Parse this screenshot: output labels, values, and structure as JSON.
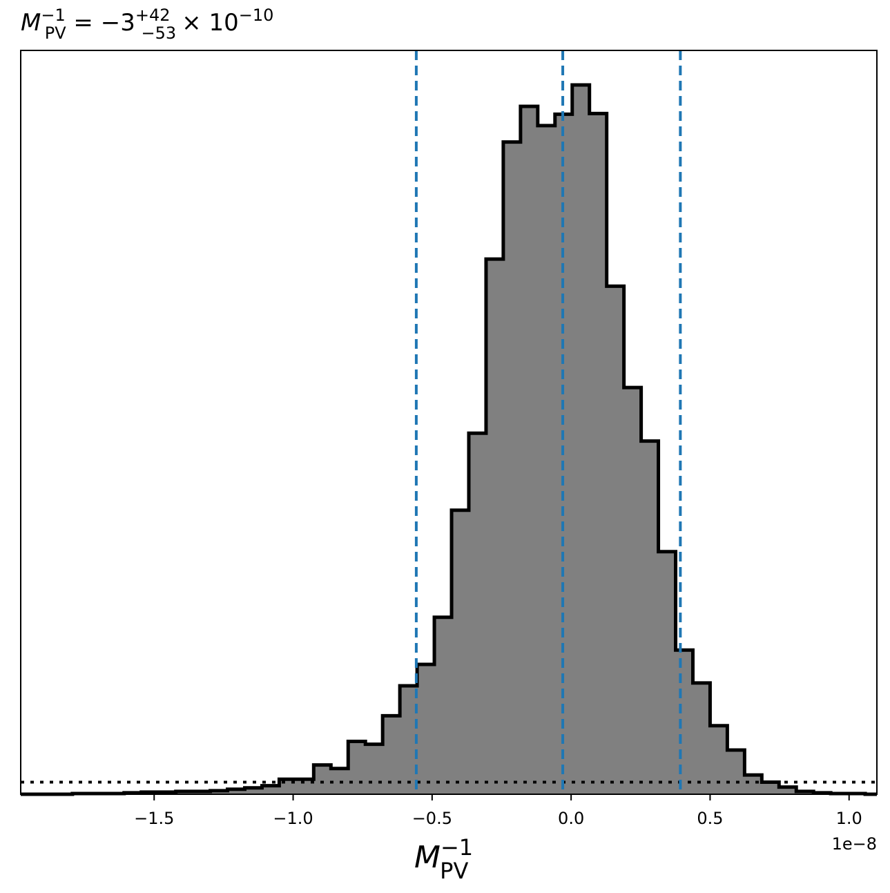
{
  "chart_data": {
    "type": "histogram",
    "title": {
      "base": "M",
      "sup": "−1",
      "sub": "PV",
      "eq": " = −3",
      "err_sup": "+42",
      "err_sub": "−53",
      "times": "× 10",
      "exp": "−10"
    },
    "xlabel": {
      "base": "M",
      "sup": "−1",
      "sub": "PV"
    },
    "x_multiplier_label": "1e−8",
    "xlim": [
      -1.98,
      1.1
    ],
    "ylim": [
      0,
      1.0
    ],
    "grid": false,
    "legend": "none",
    "x_ticks": [
      {
        "value": -1.5,
        "label": "−1.5"
      },
      {
        "value": -1.0,
        "label": "−1.0"
      },
      {
        "value": -0.5,
        "label": "−0.5"
      },
      {
        "value": 0.0,
        "label": "0.0"
      },
      {
        "value": 0.5,
        "label": "0.5"
      },
      {
        "value": 1.0,
        "label": "1.0"
      }
    ],
    "bin_edges": [
      -1.98,
      -1.918,
      -1.856,
      -1.794,
      -1.732,
      -1.67,
      -1.608,
      -1.546,
      -1.484,
      -1.422,
      -1.36,
      -1.298,
      -1.236,
      -1.174,
      -1.112,
      -1.05,
      -0.988,
      -0.926,
      -0.864,
      -0.802,
      -0.74,
      -0.678,
      -0.616,
      -0.554,
      -0.492,
      -0.43,
      -0.368,
      -0.306,
      -0.244,
      -0.182,
      -0.12,
      -0.058,
      0.004,
      0.066,
      0.128,
      0.19,
      0.252,
      0.314,
      0.376,
      0.438,
      0.5,
      0.562,
      0.624,
      0.686,
      0.748,
      0.81,
      0.872,
      0.934,
      0.996,
      1.058,
      1.1
    ],
    "counts": [
      0,
      0,
      0,
      0.001,
      0.001,
      0.001,
      0.002,
      0.003,
      0.003,
      0.004,
      0.004,
      0.005,
      0.007,
      0.009,
      0.012,
      0.021,
      0.021,
      0.041,
      0.036,
      0.074,
      0.07,
      0.11,
      0.152,
      0.182,
      0.248,
      0.398,
      0.506,
      0.75,
      0.914,
      0.964,
      0.937,
      0.953,
      0.994,
      0.954,
      0.712,
      0.57,
      0.495,
      0.34,
      0.202,
      0.156,
      0.096,
      0.062,
      0.027,
      0.017,
      0.01,
      0.004,
      0.002,
      0.001,
      0.001,
      0
    ],
    "quantile_lines": [
      -0.557,
      -0.03,
      0.393
    ],
    "reference_hline": 0.017,
    "colors": {
      "fill": "#808080",
      "edge": "#000000",
      "quantile": "#1f77b4",
      "hline": "#000000"
    }
  }
}
